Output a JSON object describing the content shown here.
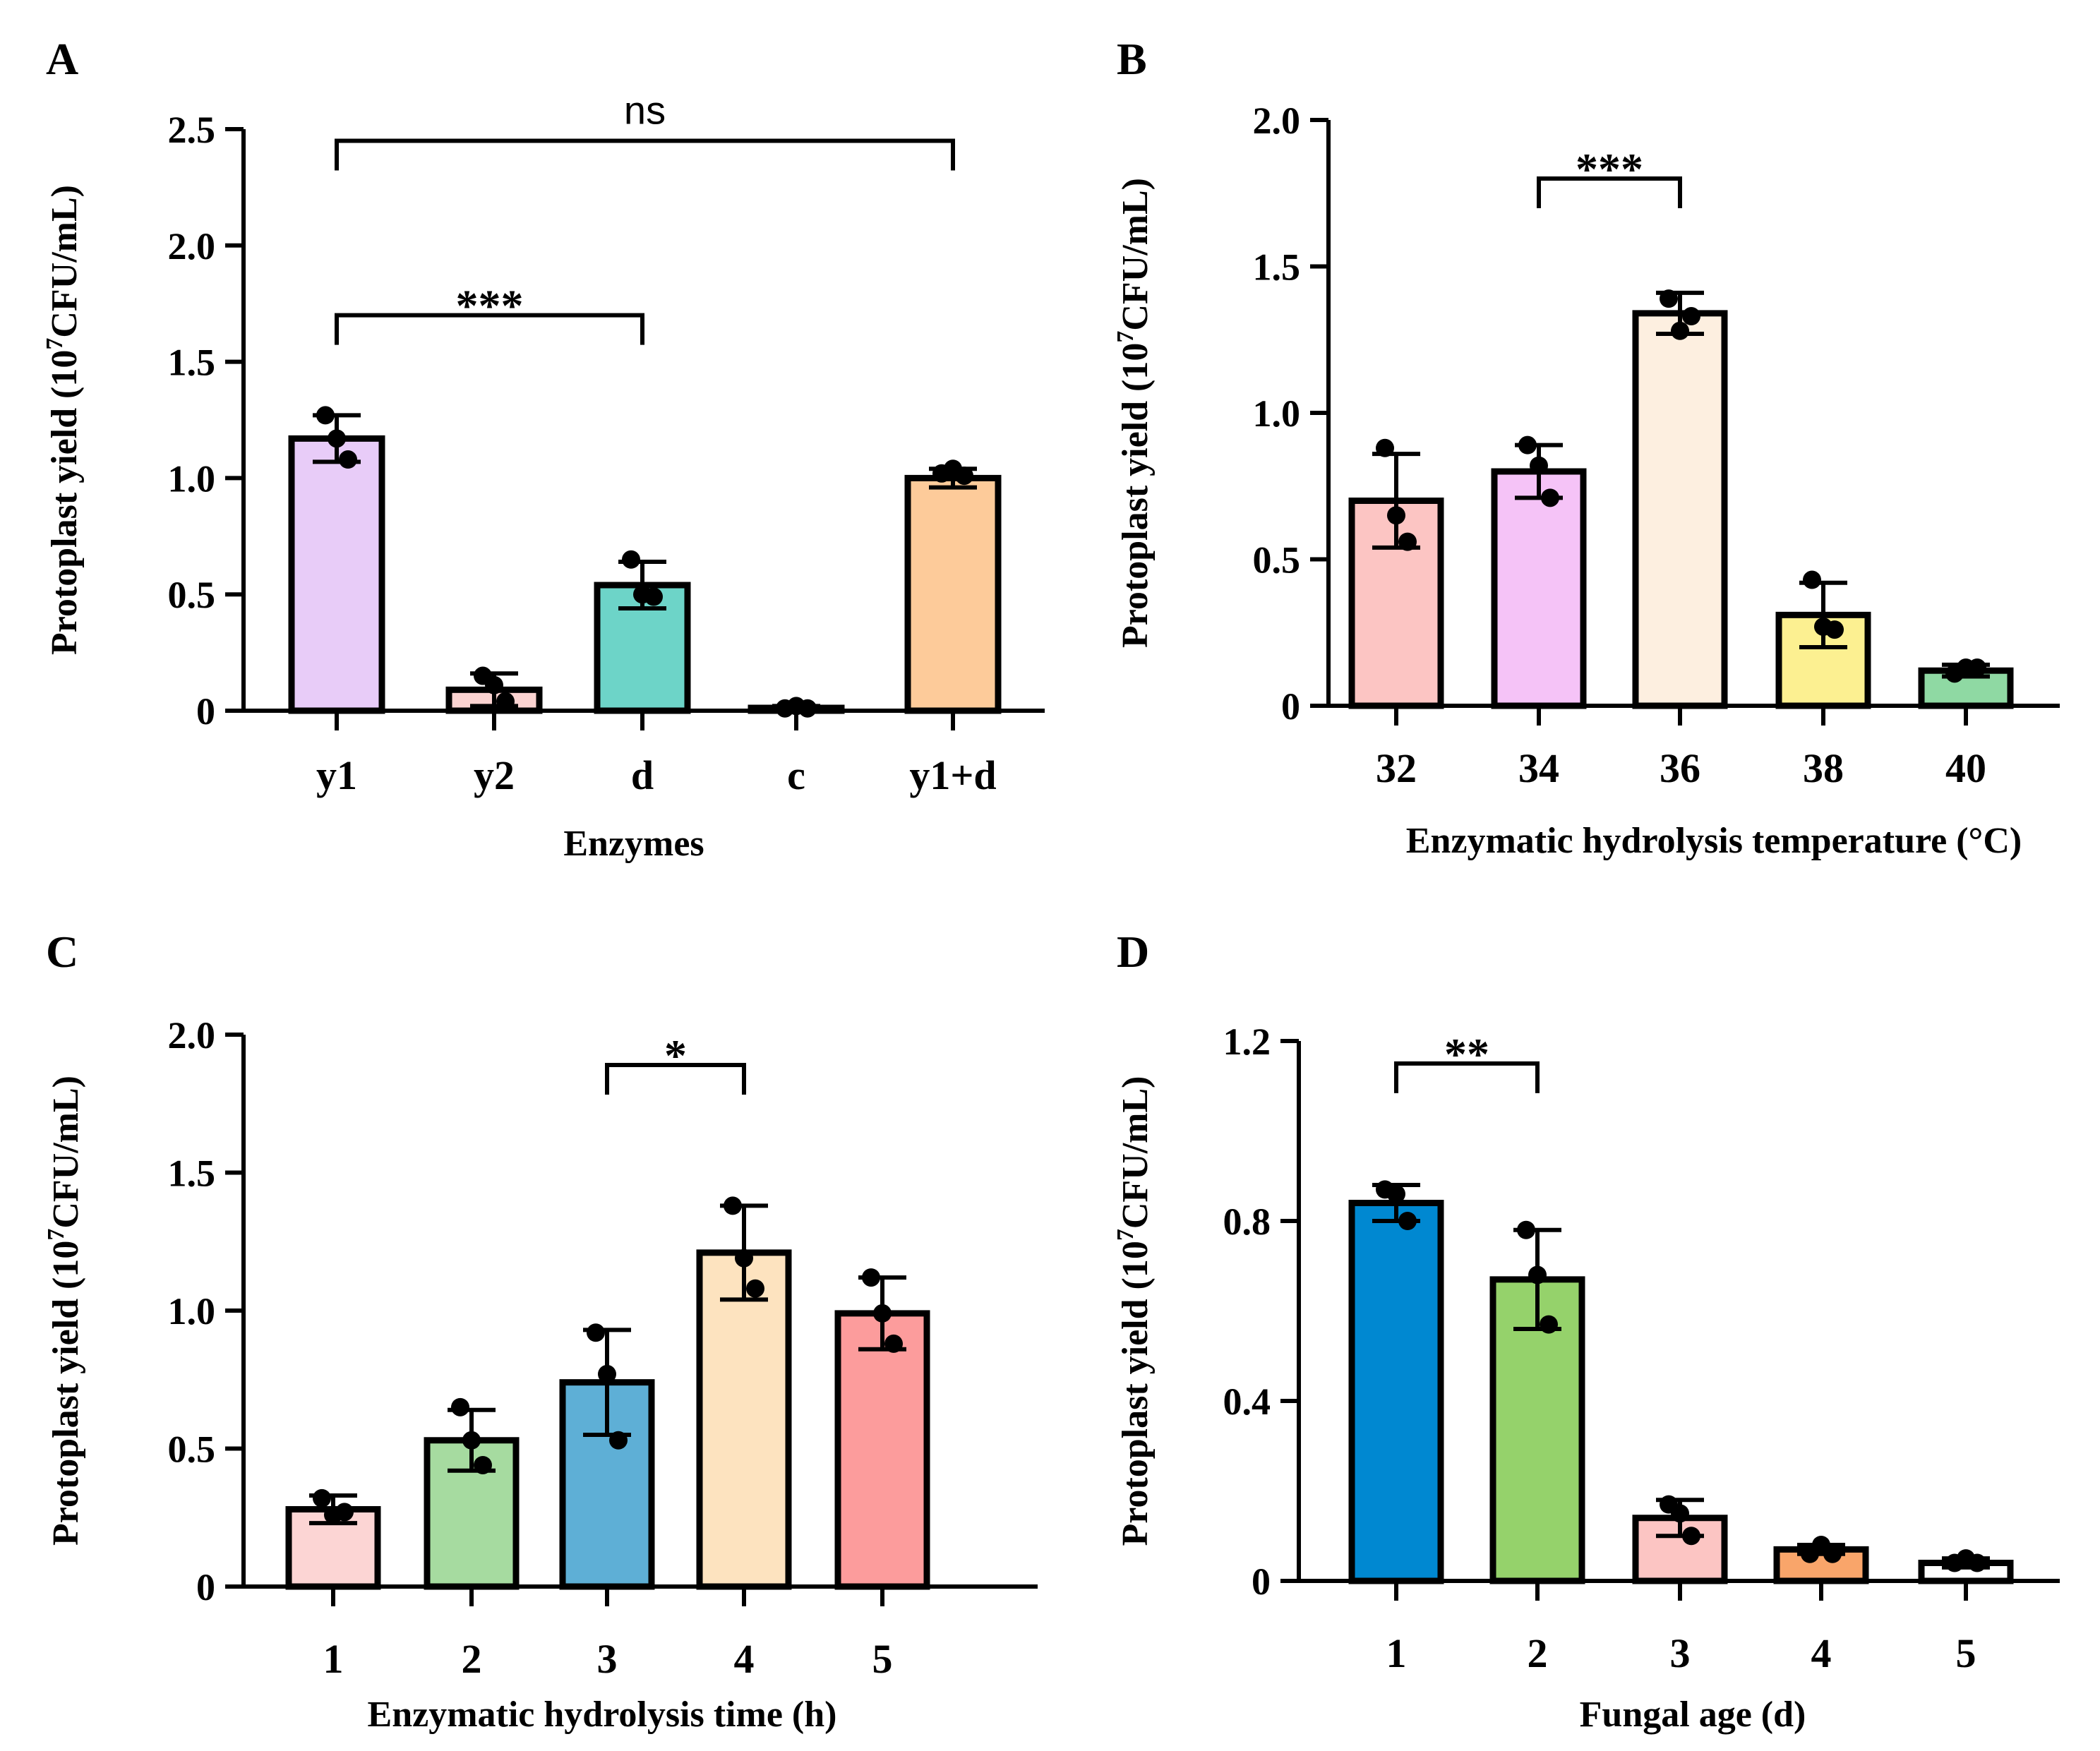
{
  "chart_data": [
    {
      "panel": "A",
      "type": "bar",
      "title": "",
      "xlabel": "Enzymes",
      "ylabel_parts": [
        "Protoplast yield (10",
        "7",
        "CFU/mL)"
      ],
      "ylim": [
        0,
        2.5
      ],
      "yticks": [
        0,
        0.5,
        1.0,
        1.5,
        2.0,
        2.5
      ],
      "ytick_labels": [
        "0",
        "0.5",
        "1.0",
        "1.5",
        "2.0",
        "2.5"
      ],
      "categories": [
        "y1",
        "y2",
        "d",
        "c",
        "y1+d"
      ],
      "values": [
        1.17,
        0.09,
        0.54,
        0.01,
        1.0
      ],
      "errors": [
        0.1,
        0.07,
        0.1,
        0.01,
        0.04
      ],
      "points": [
        [
          1.27,
          1.17,
          1.08
        ],
        [
          0.15,
          0.11,
          0.04
        ],
        [
          0.65,
          0.5,
          0.49
        ],
        [
          0.01,
          0.02,
          0.01
        ],
        [
          1.02,
          1.04,
          1.01
        ]
      ],
      "colors": [
        "#e8ccf8",
        "#fbd3d1",
        "#6dd4c8",
        "#ffffff",
        "#fdcb9a"
      ],
      "significance": [
        {
          "from": 0,
          "to": 2,
          "label": "***",
          "y": 1.7,
          "style": "stars"
        },
        {
          "from": 0,
          "to": 4,
          "label": "ns",
          "y": 2.45,
          "style": "ns"
        }
      ]
    },
    {
      "panel": "B",
      "type": "bar",
      "title": "",
      "xlabel": "Enzymatic hydrolysis temperature (°C)",
      "ylabel_parts": [
        "Protoplast yield (10",
        "7",
        "CFU/mL)"
      ],
      "ylim": [
        0,
        2.0
      ],
      "yticks": [
        0,
        0.5,
        1.0,
        1.5,
        2.0
      ],
      "ytick_labels": [
        "0",
        "0.5",
        "1.0",
        "1.5",
        "2.0"
      ],
      "categories": [
        "32",
        "34",
        "36",
        "38",
        "40"
      ],
      "values": [
        0.7,
        0.8,
        1.34,
        0.31,
        0.12
      ],
      "errors": [
        0.16,
        0.09,
        0.07,
        0.11,
        0.02
      ],
      "points": [
        [
          0.88,
          0.65,
          0.56
        ],
        [
          0.89,
          0.82,
          0.71
        ],
        [
          1.39,
          1.28,
          1.33
        ],
        [
          0.43,
          0.27,
          0.26
        ],
        [
          0.11,
          0.13,
          0.13
        ]
      ],
      "colors": [
        "#fcc5c3",
        "#f5c3f7",
        "#fdefe0",
        "#fcf091",
        "#8fd9a3"
      ],
      "significance": [
        {
          "from": 1,
          "to": 2,
          "label": "***",
          "y": 1.8,
          "style": "stars"
        }
      ]
    },
    {
      "panel": "C",
      "type": "bar",
      "title": "",
      "xlabel": "Enzymatic hydrolysis time (h)",
      "ylabel_parts": [
        "Protoplast yield (10",
        "7",
        "CFU/mL)"
      ],
      "ylim": [
        0,
        2.0
      ],
      "yticks": [
        0,
        0.5,
        1.0,
        1.5,
        2.0
      ],
      "ytick_labels": [
        "0",
        "0.5",
        "1.0",
        "1.5",
        "2.0"
      ],
      "categories": [
        "1",
        "2",
        "3",
        "4",
        "5"
      ],
      "values": [
        0.28,
        0.53,
        0.74,
        1.21,
        0.99
      ],
      "errors": [
        0.05,
        0.11,
        0.19,
        0.17,
        0.13
      ],
      "points": [
        [
          0.32,
          0.26,
          0.27
        ],
        [
          0.65,
          0.53,
          0.44
        ],
        [
          0.92,
          0.77,
          0.53
        ],
        [
          1.38,
          1.19,
          1.08
        ],
        [
          1.12,
          0.99,
          0.88
        ]
      ],
      "colors": [
        "#fcd5d4",
        "#a6dba0",
        "#5eafd6",
        "#fde3bf",
        "#fc9c9c"
      ],
      "significance": [
        {
          "from": 2,
          "to": 3,
          "label": "*",
          "y": 1.89,
          "style": "stars"
        }
      ]
    },
    {
      "panel": "D",
      "type": "bar",
      "title": "",
      "xlabel": "Fungal age (d)",
      "ylabel_parts": [
        "Protoplast yield (10",
        "7",
        "CFU/mL)"
      ],
      "ylim": [
        0,
        1.2
      ],
      "yticks": [
        0,
        0.4,
        0.8,
        1.2
      ],
      "ytick_labels": [
        "0",
        "0.4",
        "0.8",
        "1.2"
      ],
      "categories": [
        "1",
        "2",
        "3",
        "4",
        "5"
      ],
      "values": [
        0.84,
        0.67,
        0.14,
        0.07,
        0.04
      ],
      "errors": [
        0.04,
        0.11,
        0.04,
        0.01,
        0.01
      ],
      "points": [
        [
          0.87,
          0.86,
          0.8
        ],
        [
          0.78,
          0.68,
          0.57
        ],
        [
          0.17,
          0.15,
          0.1
        ],
        [
          0.06,
          0.08,
          0.06
        ],
        [
          0.04,
          0.05,
          0.04
        ]
      ],
      "colors": [
        "#0088d1",
        "#95d26b",
        "#fcc5c3",
        "#f9a56a",
        "#ffffff"
      ],
      "significance": [
        {
          "from": 0,
          "to": 1,
          "label": "**",
          "y": 1.15,
          "style": "stars"
        }
      ]
    }
  ]
}
